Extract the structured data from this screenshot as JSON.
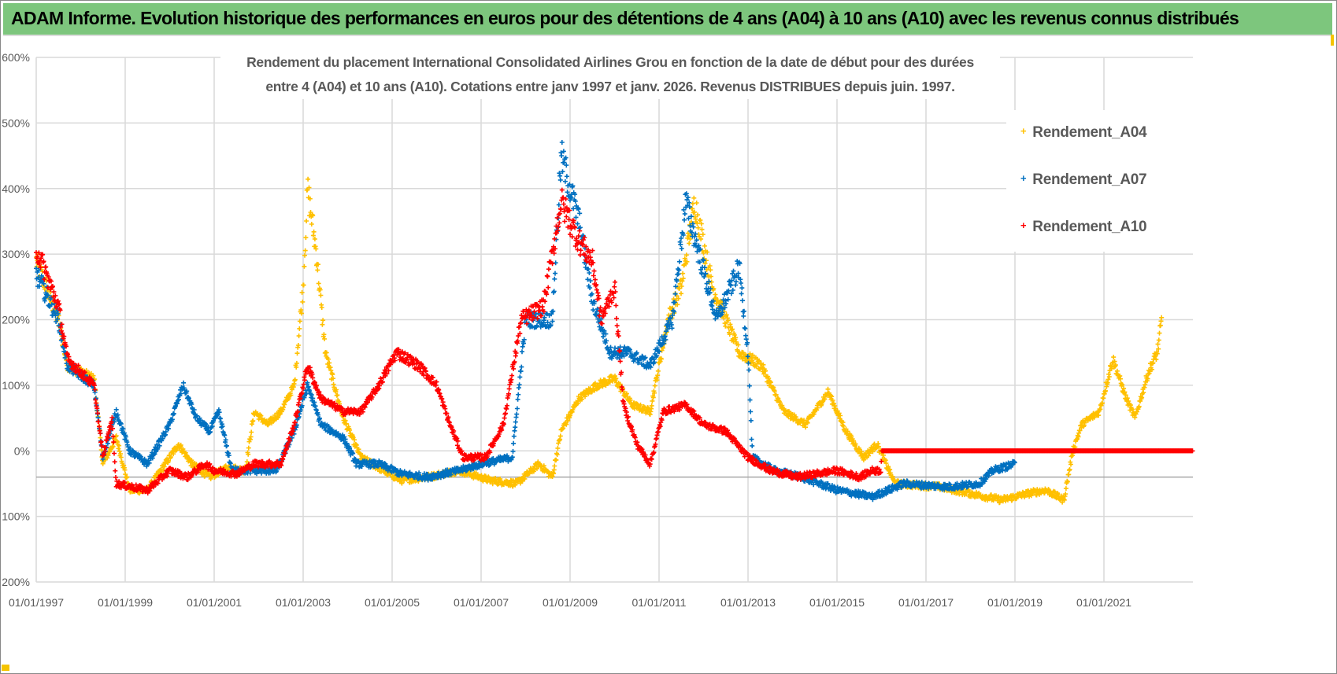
{
  "header": {
    "title": "ADAM Informe. Evolution historique des performances en euros pour des détentions de 4 ans (A04) à 10 ans (A10) avec les revenus connus distribués"
  },
  "chart_data": {
    "type": "scatter",
    "title_line1": "Rendement du placement International Consolidated Airlines Grou en fonction de la date de début pour des durées",
    "title_line2": "entre 4 (A04) et 10 ans (A10).  Cotations entre janv 1997 et janv. 2026. Revenus DISTRIBUES depuis juin. 1997.",
    "xlabel": "",
    "ylabel": "",
    "xlim": [
      1997,
      2023
    ],
    "ylim": [
      -200,
      600
    ],
    "grid": true,
    "reference_line": -40,
    "legend_position": "top-right",
    "y_ticks": [
      "600%",
      "500%",
      "400%",
      "300%",
      "200%",
      "100%",
      "0%",
      "- 100%",
      "- 200%"
    ],
    "y_tick_values": [
      600,
      500,
      400,
      300,
      200,
      100,
      0,
      -100,
      -200
    ],
    "x_ticks": [
      "01/01/1997",
      "01/01/1999",
      "01/01/2001",
      "01/01/2003",
      "01/01/2005",
      "01/01/2007",
      "01/01/2009",
      "01/01/2011",
      "01/01/2013",
      "01/01/2015",
      "01/01/2017",
      "01/01/2019",
      "01/01/2021"
    ],
    "x_tick_values": [
      1997,
      1999,
      2001,
      2003,
      2005,
      2007,
      2009,
      2011,
      2013,
      2015,
      2017,
      2019,
      2021
    ],
    "series": [
      {
        "name": "Rendement_A04",
        "color": "#ffc000",
        "points": [
          [
            1997,
            290
          ],
          [
            1997.5,
            200
          ],
          [
            1997.7,
            130
          ],
          [
            1998.3,
            110
          ],
          [
            1998.5,
            -20
          ],
          [
            1998.8,
            20
          ],
          [
            1999.1,
            -60
          ],
          [
            1999.5,
            -60
          ],
          [
            1999.9,
            -20
          ],
          [
            2000.2,
            10
          ],
          [
            2000.5,
            -20
          ],
          [
            2000.9,
            -40
          ],
          [
            2001.3,
            -25
          ],
          [
            2001.7,
            -30
          ],
          [
            2001.9,
            60
          ],
          [
            2002.2,
            40
          ],
          [
            2002.5,
            60
          ],
          [
            2002.8,
            100
          ],
          [
            2003.0,
            250
          ],
          [
            2003.1,
            400
          ],
          [
            2003.3,
            300
          ],
          [
            2003.5,
            150
          ],
          [
            2003.9,
            50
          ],
          [
            2004.3,
            -10
          ],
          [
            2004.8,
            -30
          ],
          [
            2005.2,
            -45
          ],
          [
            2005.8,
            -40
          ],
          [
            2006.5,
            -30
          ],
          [
            2007.2,
            -45
          ],
          [
            2007.8,
            -50
          ],
          [
            2008.3,
            -20
          ],
          [
            2008.6,
            -40
          ],
          [
            2008.8,
            30
          ],
          [
            2009.2,
            80
          ],
          [
            2009.6,
            100
          ],
          [
            2010.0,
            110
          ],
          [
            2010.4,
            70
          ],
          [
            2010.8,
            60
          ],
          [
            2011.2,
            200
          ],
          [
            2011.5,
            250
          ],
          [
            2011.8,
            380
          ],
          [
            2012.2,
            250
          ],
          [
            2012.5,
            200
          ],
          [
            2012.8,
            150
          ],
          [
            2013.3,
            130
          ],
          [
            2013.8,
            60
          ],
          [
            2014.3,
            40
          ],
          [
            2014.8,
            90
          ],
          [
            2015.2,
            30
          ],
          [
            2015.6,
            -10
          ],
          [
            2015.9,
            10
          ],
          [
            2016.3,
            -50
          ],
          [
            2017.3,
            -55
          ],
          [
            2018.0,
            -65
          ],
          [
            2018.7,
            -75
          ],
          [
            2019.3,
            -65
          ],
          [
            2019.7,
            -60
          ],
          [
            2020.1,
            -75
          ],
          [
            2020.3,
            0
          ],
          [
            2020.5,
            40
          ],
          [
            2020.9,
            60
          ],
          [
            2021.2,
            140
          ],
          [
            2021.5,
            80
          ],
          [
            2021.7,
            50
          ],
          [
            2022.0,
            120
          ],
          [
            2022.2,
            150
          ],
          [
            2022.3,
            200
          ]
        ]
      },
      {
        "name": "Rendement_A07",
        "color": "#0070c0",
        "points": [
          [
            1997,
            270
          ],
          [
            1997.5,
            200
          ],
          [
            1997.7,
            130
          ],
          [
            1998.3,
            100
          ],
          [
            1998.5,
            -10
          ],
          [
            1998.8,
            60
          ],
          [
            1999.1,
            0
          ],
          [
            1999.5,
            -20
          ],
          [
            2000.0,
            40
          ],
          [
            2000.3,
            100
          ],
          [
            2000.6,
            50
          ],
          [
            2000.9,
            30
          ],
          [
            2001.1,
            60
          ],
          [
            2001.4,
            -30
          ],
          [
            2002.0,
            -30
          ],
          [
            2002.4,
            -30
          ],
          [
            2002.8,
            30
          ],
          [
            2003.1,
            100
          ],
          [
            2003.4,
            40
          ],
          [
            2003.9,
            20
          ],
          [
            2004.2,
            -20
          ],
          [
            2004.7,
            -20
          ],
          [
            2005.2,
            -35
          ],
          [
            2005.8,
            -40
          ],
          [
            2006.5,
            -30
          ],
          [
            2007.0,
            -20
          ],
          [
            2007.7,
            -10
          ],
          [
            2008.0,
            200
          ],
          [
            2008.6,
            200
          ],
          [
            2008.8,
            450
          ],
          [
            2009.2,
            350
          ],
          [
            2009.5,
            230
          ],
          [
            2009.9,
            150
          ],
          [
            2010.3,
            150
          ],
          [
            2010.8,
            130
          ],
          [
            2011.3,
            200
          ],
          [
            2011.6,
            380
          ],
          [
            2011.9,
            300
          ],
          [
            2012.3,
            200
          ],
          [
            2012.8,
            280
          ],
          [
            2013.0,
            150
          ],
          [
            2013.1,
            -10
          ],
          [
            2013.6,
            -30
          ],
          [
            2014.2,
            -40
          ],
          [
            2015.0,
            -60
          ],
          [
            2015.8,
            -70
          ],
          [
            2016.5,
            -50
          ],
          [
            2017.5,
            -55
          ],
          [
            2018.2,
            -50
          ],
          [
            2018.5,
            -30
          ],
          [
            2019.0,
            -20
          ]
        ]
      },
      {
        "name": "Rendement_A10",
        "color": "#ff0000",
        "points": [
          [
            1997,
            310
          ],
          [
            1997.5,
            220
          ],
          [
            1997.7,
            140
          ],
          [
            1998.3,
            100
          ],
          [
            1998.5,
            -10
          ],
          [
            1998.7,
            50
          ],
          [
            1998.8,
            -50
          ],
          [
            1999.5,
            -60
          ],
          [
            2000.0,
            -30
          ],
          [
            2000.4,
            -40
          ],
          [
            2000.8,
            -20
          ],
          [
            2001.0,
            -30
          ],
          [
            2001.5,
            -35
          ],
          [
            2001.9,
            -20
          ],
          [
            2002.5,
            -20
          ],
          [
            2002.8,
            40
          ],
          [
            2003.1,
            130
          ],
          [
            2003.4,
            80
          ],
          [
            2003.9,
            60
          ],
          [
            2004.3,
            60
          ],
          [
            2004.7,
            100
          ],
          [
            2005.1,
            150
          ],
          [
            2005.6,
            130
          ],
          [
            2006.0,
            100
          ],
          [
            2006.3,
            40
          ],
          [
            2006.6,
            -10
          ],
          [
            2007.1,
            -10
          ],
          [
            2007.5,
            40
          ],
          [
            2007.9,
            200
          ],
          [
            2008.4,
            220
          ],
          [
            2008.8,
            380
          ],
          [
            2009.2,
            320
          ],
          [
            2009.5,
            290
          ],
          [
            2009.7,
            200
          ],
          [
            2010.0,
            250
          ],
          [
            2010.2,
            70
          ],
          [
            2010.5,
            10
          ],
          [
            2010.8,
            -20
          ],
          [
            2011.1,
            60
          ],
          [
            2011.6,
            70
          ],
          [
            2012.0,
            40
          ],
          [
            2012.5,
            30
          ],
          [
            2013.0,
            -10
          ],
          [
            2013.5,
            -30
          ],
          [
            2014.1,
            -40
          ],
          [
            2015.0,
            -30
          ],
          [
            2015.5,
            -40
          ],
          [
            2015.8,
            -30
          ],
          [
            2015.99,
            -30
          ],
          [
            2016.0,
            0
          ],
          [
            2023.0,
            0
          ]
        ]
      }
    ]
  }
}
